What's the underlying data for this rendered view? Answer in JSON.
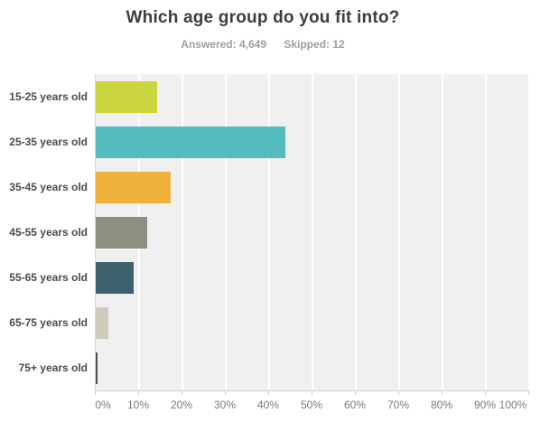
{
  "header": {
    "title": "Which age group do you fit into?",
    "answered": "Answered: 4,649",
    "skipped": "Skipped: 12"
  },
  "chart_data": {
    "type": "bar",
    "orientation": "horizontal",
    "title": "Which age group do you fit into?",
    "subtitle": "Answered: 4,649  Skipped: 12",
    "categories": [
      "15-25 years old",
      "25-35 years old",
      "35-45 years old",
      "45-55 years old",
      "55-65 years old",
      "65-75 years old",
      "75+ years old"
    ],
    "values": [
      14.2,
      43.8,
      17.3,
      11.9,
      8.8,
      2.9,
      0.5
    ],
    "bar_colors": [
      "#cbd53d",
      "#52bcbe",
      "#f0b23c",
      "#8c9081",
      "#3c6270",
      "#cecbbb",
      "#53534b"
    ],
    "x_ticks": [
      "0%",
      "10%",
      "20%",
      "30%",
      "40%",
      "50%",
      "60%",
      "70%",
      "80%",
      "90%",
      "100%"
    ],
    "xlabel": "",
    "ylabel": "",
    "xlim": [
      0,
      100
    ],
    "grid": "vertical-white-on-gray",
    "plot_background": "#f0f0f1",
    "gridline_color": "#ffffff",
    "legend": "none"
  }
}
